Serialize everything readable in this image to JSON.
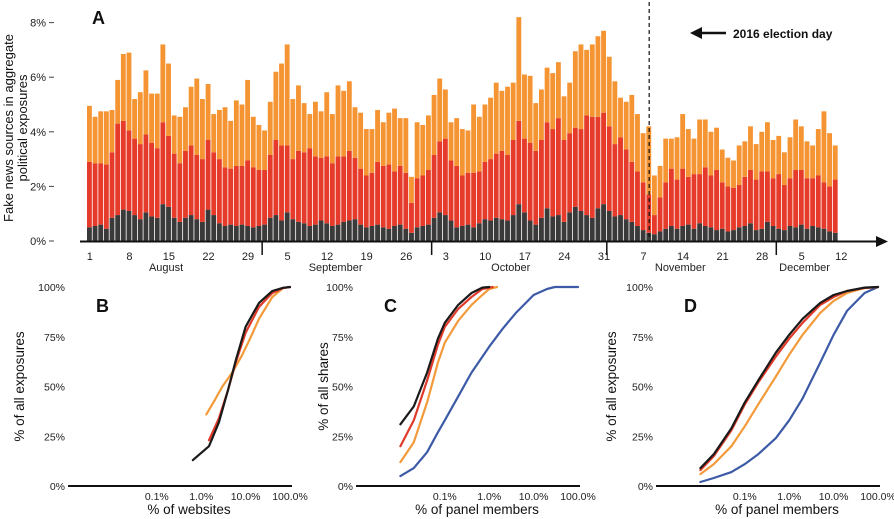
{
  "colors": {
    "black_series": "#1a1a1a",
    "red_series": "#e03a2a",
    "orange_series": "#f39a3a",
    "blue_series": "#3c5aa6",
    "bar_dark": "#3a3a3a",
    "bar_red": "#e63b2a",
    "bar_orange": "#f59433",
    "axis": "#111111"
  },
  "chart_data": [
    {
      "panel": "A",
      "type": "bar",
      "stacked": true,
      "ylabel": "Fake news sources in aggregate political exposures",
      "ylabel_lines": [
        "Fake news sources in aggregate",
        "political exposures"
      ],
      "ylim": [
        0,
        8.5
      ],
      "yticks": [
        "0%",
        "2%",
        "4%",
        "6%",
        "8%"
      ],
      "ytick_values": [
        0,
        2,
        4,
        6,
        8
      ],
      "annotation": "2016 election day",
      "election_day_index": 99,
      "xtick_labels": [
        "1",
        "8",
        "15",
        "22",
        "29",
        "5",
        "12",
        "19",
        "26",
        "3",
        "10",
        "17",
        "24",
        "31",
        "7",
        "14",
        "21",
        "28",
        "5",
        "12"
      ],
      "xtick_day_index": [
        0,
        7,
        14,
        21,
        28,
        35,
        42,
        49,
        56,
        63,
        70,
        77,
        84,
        91,
        98,
        105,
        112,
        119,
        126,
        133
      ],
      "month_labels": [
        "August",
        "September",
        "October",
        "November",
        "December"
      ],
      "month_center_index": [
        14,
        44,
        75,
        105,
        127
      ],
      "month_separator_index": [
        31,
        61,
        92,
        122
      ],
      "series": [
        {
          "key": "dark",
          "values": [
            0.5,
            0.55,
            0.6,
            0.45,
            0.85,
            0.95,
            1.15,
            1.1,
            0.95,
            0.8,
            1.05,
            0.9,
            0.85,
            1.35,
            1.25,
            0.85,
            0.7,
            0.85,
            0.95,
            0.8,
            0.7,
            1.15,
            0.95,
            0.65,
            0.55,
            0.6,
            0.55,
            0.6,
            0.55,
            0.5,
            0.55,
            0.6,
            0.85,
            0.95,
            0.75,
            1.05,
            0.8,
            0.7,
            0.65,
            0.55,
            0.6,
            0.75,
            0.65,
            0.55,
            0.6,
            0.7,
            0.75,
            0.8,
            0.6,
            0.5,
            0.55,
            0.6,
            0.5,
            0.45,
            0.55,
            0.6,
            0.45,
            0.3,
            0.5,
            0.55,
            0.6,
            0.85,
            1.05,
            0.95,
            0.75,
            0.5,
            0.55,
            0.6,
            0.5,
            0.65,
            0.8,
            0.75,
            0.85,
            0.8,
            0.75,
            0.95,
            1.35,
            1.05,
            0.75,
            0.6,
            0.85,
            1.2,
            0.9,
            0.95,
            0.7,
            1.05,
            1.25,
            1.1,
            0.95,
            0.85,
            1.2,
            1.35,
            1.1,
            0.9,
            0.95,
            0.8,
            0.7,
            0.55,
            0.4,
            0.3,
            0.25,
            0.35,
            0.45,
            0.55,
            0.45,
            0.55,
            0.6,
            0.45,
            0.65,
            0.55,
            0.5,
            0.4,
            0.45,
            0.35,
            0.4,
            0.5,
            0.55,
            0.65,
            0.4,
            0.45,
            0.7,
            0.55,
            0.45,
            0.4,
            0.55,
            0.5,
            0.6,
            0.45,
            0.55,
            0.5,
            0.45,
            0.35,
            0.3
          ]
        },
        {
          "key": "red",
          "values": [
            2.4,
            2.3,
            2.25,
            2.35,
            2.4,
            3.35,
            3.25,
            2.95,
            2.8,
            2.75,
            2.85,
            2.7,
            2.55,
            3.0,
            2.6,
            2.35,
            2.15,
            2.45,
            2.55,
            2.35,
            2.3,
            2.55,
            2.3,
            2.35,
            2.15,
            2.05,
            2.2,
            2.15,
            2.4,
            2.2,
            2.05,
            2.0,
            2.3,
            2.75,
            2.75,
            2.45,
            2.2,
            2.6,
            2.6,
            2.85,
            2.5,
            2.3,
            2.45,
            2.3,
            2.5,
            2.4,
            2.55,
            2.25,
            2.05,
            1.9,
            1.95,
            2.3,
            2.25,
            2.35,
            2.0,
            2.15,
            2.05,
            1.1,
            1.8,
            1.85,
            2.0,
            2.3,
            2.6,
            2.8,
            2.2,
            2.25,
            1.85,
            1.9,
            2.0,
            1.9,
            2.1,
            2.25,
            2.35,
            2.5,
            2.4,
            2.75,
            3.05,
            2.7,
            2.85,
            2.7,
            2.85,
            3.15,
            3.2,
            3.55,
            3.0,
            2.9,
            2.9,
            3.0,
            3.65,
            3.7,
            3.35,
            3.35,
            3.1,
            2.65,
            2.85,
            2.55,
            2.2,
            2.0,
            1.75,
            1.4,
            0.7,
            1.25,
            1.7,
            2.1,
            1.8,
            2.1,
            1.75,
            2.0,
            1.8,
            2.15,
            1.9,
            2.2,
            1.7,
            1.65,
            1.55,
            1.55,
            1.8,
            1.95,
            1.85,
            2.1,
            1.85,
            1.75,
            2.0,
            1.65,
            1.75,
            2.1,
            2.0,
            1.85,
            1.75,
            1.9,
            1.7,
            1.65,
            1.95
          ]
        },
        {
          "key": "orange",
          "values": [
            2.05,
            1.7,
            1.9,
            1.95,
            1.55,
            1.6,
            2.45,
            2.85,
            1.45,
            1.9,
            2.35,
            1.8,
            2.0,
            2.85,
            2.65,
            1.4,
            1.7,
            1.6,
            2.15,
            2.8,
            2.2,
            2.05,
            1.4,
            1.8,
            2.2,
            1.75,
            2.4,
            2.25,
            2.95,
            1.85,
            1.65,
            1.45,
            1.95,
            2.5,
            3.0,
            3.7,
            2.2,
            2.4,
            1.8,
            1.25,
            2.0,
            1.7,
            2.35,
            1.8,
            2.6,
            2.4,
            2.55,
            1.85,
            2.05,
            1.7,
            1.6,
            1.9,
            1.6,
            1.9,
            2.3,
            1.75,
            2.0,
            0.95,
            2.05,
            1.85,
            2.0,
            2.2,
            2.3,
            1.8,
            1.4,
            1.75,
            1.7,
            1.55,
            2.5,
            2.0,
            2.1,
            2.25,
            2.6,
            2.2,
            2.5,
            2.1,
            3.8,
            2.35,
            2.45,
            1.75,
            1.85,
            2.0,
            2.05,
            2.05,
            1.6,
            1.85,
            2.8,
            3.1,
            2.4,
            2.65,
            2.95,
            3.0,
            2.55,
            2.3,
            1.45,
            1.75,
            2.45,
            2.1,
            1.8,
            2.5,
            1.45,
            1.15,
            1.6,
            1.1,
            1.55,
            2.0,
            1.75,
            1.3,
            2.0,
            1.75,
            1.6,
            1.55,
            1.2,
            1.05,
            1.0,
            1.45,
            1.3,
            1.6,
            1.3,
            1.45,
            1.8,
            1.4,
            1.4,
            1.2,
            1.5,
            1.85,
            1.6,
            1.35,
            1.2,
            1.7,
            2.6,
            1.95,
            1.25
          ]
        }
      ]
    },
    {
      "panel": "B",
      "type": "line",
      "xlabel": "% of websites",
      "ylabel": "% of all exposures",
      "x_scale": "log",
      "xlim": [
        0.001,
        100
      ],
      "ylim": [
        0,
        100
      ],
      "xtick_labels": [
        "0.1%",
        "1.0%",
        "10.0%",
        "100.0%"
      ],
      "xtick_values": [
        0.1,
        1,
        10,
        100
      ],
      "ytick_labels": [
        "0%",
        "25%",
        "50%",
        "75%",
        "100%"
      ],
      "ytick_values": [
        0,
        25,
        50,
        75,
        100
      ],
      "series": [
        {
          "key": "black",
          "x": [
            0.65,
            1.5,
            2.5,
            4,
            6,
            10,
            20,
            40,
            70,
            100
          ],
          "y": [
            13,
            20,
            32,
            48,
            63,
            80,
            92,
            98,
            99.6,
            100
          ]
        },
        {
          "key": "red",
          "x": [
            1.5,
            2.5,
            4,
            6,
            10,
            20,
            40,
            70,
            100
          ],
          "y": [
            23,
            34,
            48,
            62,
            77,
            90,
            97,
            99.5,
            100
          ]
        },
        {
          "key": "orange",
          "x": [
            1.3,
            2,
            3,
            5,
            8,
            12,
            20,
            40,
            70,
            100
          ],
          "y": [
            36,
            43,
            50,
            57,
            65,
            73,
            84,
            95,
            99.5,
            100
          ]
        }
      ]
    },
    {
      "panel": "C",
      "type": "line",
      "xlabel": "% of  panel members",
      "ylabel": "% of all shares",
      "x_scale": "log",
      "xlim": [
        0.001,
        100
      ],
      "ylim": [
        0,
        100
      ],
      "xtick_labels": [
        "0.1%",
        "1.0%",
        "10.0%",
        "100.0%"
      ],
      "xtick_values": [
        0.1,
        1,
        10,
        100
      ],
      "ytick_labels": [
        "0%",
        "25%",
        "50%",
        "75%",
        "100%"
      ],
      "ytick_values": [
        0,
        25,
        50,
        75,
        100
      ],
      "series": [
        {
          "key": "black",
          "x": [
            0.01,
            0.02,
            0.04,
            0.07,
            0.1,
            0.2,
            0.4,
            0.7,
            1
          ],
          "y": [
            31,
            40,
            57,
            74,
            82,
            91,
            97,
            99.7,
            100
          ]
        },
        {
          "key": "red",
          "x": [
            0.01,
            0.02,
            0.04,
            0.07,
            0.1,
            0.2,
            0.4,
            0.7,
            1.2
          ],
          "y": [
            20,
            33,
            53,
            71,
            80,
            89,
            95,
            99,
            100
          ]
        },
        {
          "key": "orange",
          "x": [
            0.01,
            0.02,
            0.04,
            0.07,
            0.1,
            0.2,
            0.4,
            0.7,
            1,
            1.5
          ],
          "y": [
            12,
            22,
            42,
            62,
            72,
            83,
            91,
            96,
            99,
            100
          ]
        },
        {
          "key": "blue",
          "x": [
            0.01,
            0.02,
            0.04,
            0.07,
            0.1,
            0.2,
            0.4,
            1,
            2,
            4,
            10,
            20,
            30,
            100
          ],
          "y": [
            5,
            9,
            17,
            27,
            33,
            45,
            57,
            70,
            79,
            87,
            96,
            99,
            100,
            100
          ]
        }
      ]
    },
    {
      "panel": "D",
      "type": "line",
      "xlabel": "% of  panel members",
      "ylabel": "% of all exposures",
      "x_scale": "log",
      "xlim": [
        0.001,
        100
      ],
      "ylim": [
        0,
        100
      ],
      "xtick_labels": [
        "0.1%",
        "1.0%",
        "10.0%",
        "100.0%"
      ],
      "xtick_values": [
        0.1,
        1,
        10,
        100
      ],
      "ytick_labels": [
        "0%",
        "25%",
        "50%",
        "75%",
        "100%"
      ],
      "ytick_values": [
        0,
        25,
        50,
        75,
        100
      ],
      "series": [
        {
          "key": "black",
          "x": [
            0.01,
            0.02,
            0.05,
            0.1,
            0.2,
            0.5,
            1,
            2,
            5,
            10,
            20,
            50,
            100
          ],
          "y": [
            9,
            16,
            29,
            42,
            53,
            67,
            76,
            84,
            92,
            96,
            98,
            99.7,
            100
          ]
        },
        {
          "key": "red",
          "x": [
            0.01,
            0.02,
            0.05,
            0.1,
            0.2,
            0.5,
            1,
            2,
            5,
            10,
            20,
            50,
            100
          ],
          "y": [
            8,
            15,
            28,
            41,
            52,
            65,
            74,
            82,
            91,
            95,
            98,
            99.5,
            100
          ]
        },
        {
          "key": "orange",
          "x": [
            0.01,
            0.02,
            0.05,
            0.1,
            0.2,
            0.5,
            1,
            2,
            5,
            10,
            20,
            50,
            100
          ],
          "y": [
            6,
            11,
            20,
            30,
            41,
            55,
            66,
            76,
            87,
            93,
            97,
            99.5,
            100
          ]
        },
        {
          "key": "blue",
          "x": [
            0.01,
            0.02,
            0.05,
            0.1,
            0.2,
            0.5,
            1,
            2,
            5,
            10,
            20,
            50,
            100
          ],
          "y": [
            2,
            4,
            7,
            11,
            16,
            24,
            33,
            44,
            62,
            76,
            88,
            97,
            100
          ]
        }
      ]
    }
  ]
}
